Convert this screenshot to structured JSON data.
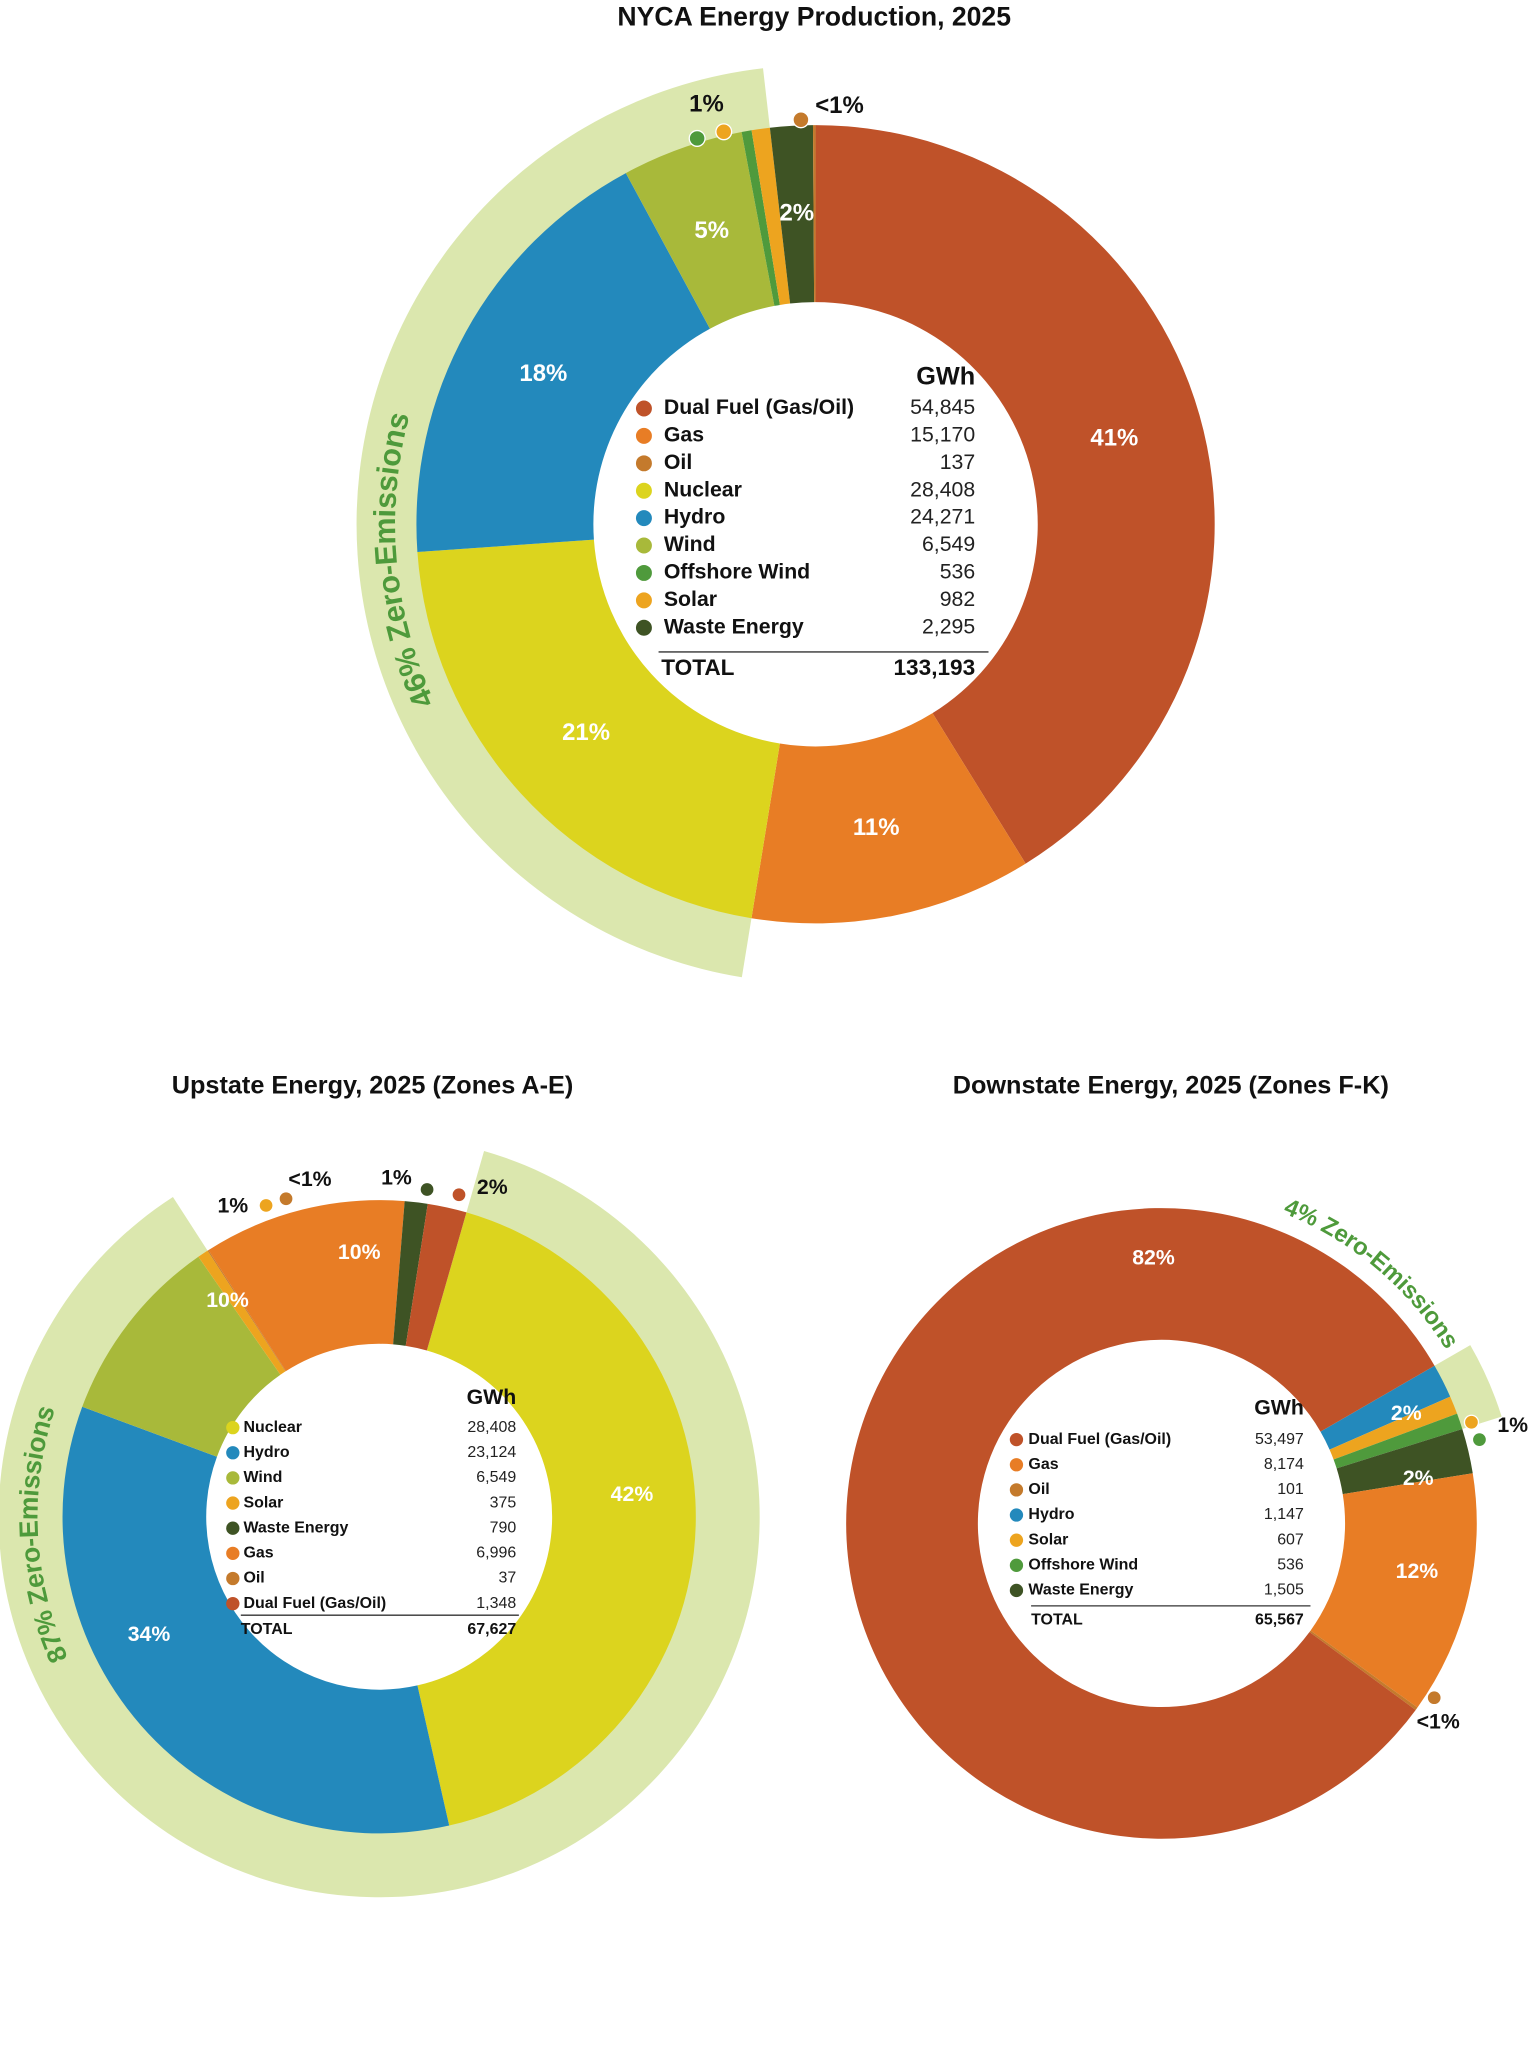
{
  "chart_data": [
    {
      "type": "pie",
      "title": "NYCA Energy Production, 2025",
      "categories": [
        "Dual Fuel (Gas/Oil)",
        "Gas",
        "Nuclear",
        "Hydro",
        "Wind",
        "Offshore Wind",
        "Solar",
        "Waste Energy",
        "Oil"
      ],
      "values": [
        54845,
        15170,
        28408,
        24271,
        6549,
        536,
        982,
        2295,
        137
      ],
      "value_labels": [
        "41%",
        "11%",
        "21%",
        "18%",
        "5%",
        null,
        "1%",
        "2%",
        "<1%"
      ],
      "colors": [
        "#bf5229",
        "#e87d25",
        "#dcd41e",
        "#2389bc",
        "#a8b93a",
        "#4f9a3c",
        "#eda41f",
        "#3e5324",
        "#c47a2c"
      ],
      "zero_emissions": [
        false,
        false,
        true,
        true,
        true,
        true,
        true,
        false,
        false
      ],
      "band_color": "#dbe7ae",
      "annotation": "46% Zero-Emissions",
      "annotation_color": "#4e9a3b",
      "legend": {
        "header": "GWh",
        "rows": [
          {
            "name": "Dual Fuel (Gas/Oil)",
            "color": "#bf5229",
            "gwh": {
              "value": 54845,
              "label": "54,845"
            }
          },
          {
            "name": "Gas",
            "color": "#e87d25",
            "gwh": {
              "value": 15170,
              "label": "15,170"
            }
          },
          {
            "name": "Oil",
            "color": "#c47a2c",
            "gwh": {
              "value": 137,
              "label": "137"
            }
          },
          {
            "name": "Nuclear",
            "color": "#dcd41e",
            "gwh": {
              "value": 28408,
              "label": "28,408"
            }
          },
          {
            "name": "Hydro",
            "color": "#2389bc",
            "gwh": {
              "value": 24271,
              "label": "24,271"
            }
          },
          {
            "name": "Wind",
            "color": "#a8b93a",
            "gwh": {
              "value": 6549,
              "label": "6,549"
            }
          },
          {
            "name": "Offshore Wind",
            "color": "#4f9a3c",
            "gwh": {
              "value": 536,
              "label": "536"
            }
          },
          {
            "name": "Solar",
            "color": "#eda41f",
            "gwh": {
              "value": 982,
              "label": "982"
            }
          },
          {
            "name": "Waste Energy",
            "color": "#3e5324",
            "gwh": {
              "value": 2295,
              "label": "2,295"
            }
          }
        ],
        "total_name": "TOTAL",
        "total": {
          "value": 133193,
          "label": "133,193"
        }
      }
    },
    {
      "type": "pie",
      "title": "Upstate Energy, 2025 (Zones A-E)",
      "categories": [
        "Nuclear",
        "Hydro",
        "Wind",
        "Solar",
        "Oil",
        "Gas",
        "Waste Energy",
        "Dual Fuel (Gas/Oil)"
      ],
      "values": [
        28408,
        23124,
        6549,
        375,
        37,
        6996,
        790,
        1348
      ],
      "value_labels": [
        "42%",
        "34%",
        "10%",
        "1%",
        "<1%",
        "10%",
        "1%",
        "2%"
      ],
      "colors": [
        "#dcd41e",
        "#2389bc",
        "#a8b93a",
        "#eda41f",
        "#c47a2c",
        "#e87d25",
        "#3e5324",
        "#bf5229"
      ],
      "zero_emissions": [
        true,
        true,
        true,
        true,
        false,
        false,
        false,
        false
      ],
      "band_color": "#dbe7ae",
      "annotation": "87% Zero-Emissions",
      "annotation_color": "#4e9a3b",
      "legend": {
        "header": "GWh",
        "rows": [
          {
            "name": "Nuclear",
            "color": "#dcd41e",
            "gwh": {
              "value": 28408,
              "label": "28,408"
            }
          },
          {
            "name": "Hydro",
            "color": "#2389bc",
            "gwh": {
              "value": 23124,
              "label": "23,124"
            }
          },
          {
            "name": "Wind",
            "color": "#a8b93a",
            "gwh": {
              "value": 6549,
              "label": "6,549"
            }
          },
          {
            "name": "Solar",
            "color": "#eda41f",
            "gwh": {
              "value": 375,
              "label": "375"
            }
          },
          {
            "name": "Waste Energy",
            "color": "#3e5324",
            "gwh": {
              "value": 790,
              "label": "790"
            }
          },
          {
            "name": "Gas",
            "color": "#e87d25",
            "gwh": {
              "value": 6996,
              "label": "6,996"
            }
          },
          {
            "name": "Oil",
            "color": "#c47a2c",
            "gwh": {
              "value": 37,
              "label": "37"
            }
          },
          {
            "name": "Dual Fuel (Gas/Oil)",
            "color": "#bf5229",
            "gwh": {
              "value": 1348,
              "label": "1,348"
            }
          }
        ],
        "total_name": "TOTAL",
        "total": {
          "value": 67627,
          "label": "67,627"
        }
      }
    },
    {
      "type": "pie",
      "title": "Downstate Energy, 2025 (Zones F-K)",
      "categories": [
        "Hydro",
        "Solar",
        "Offshore Wind",
        "Waste Energy",
        "Gas",
        "Oil",
        "Dual Fuel (Gas/Oil)"
      ],
      "values": [
        1147,
        607,
        536,
        1505,
        8174,
        101,
        53497
      ],
      "value_labels": [
        "2%",
        "1%",
        null,
        "2%",
        "12%",
        "<1%",
        "82%"
      ],
      "colors": [
        "#2389bc",
        "#eda41f",
        "#4f9a3c",
        "#3e5324",
        "#e87d25",
        "#c47a2c",
        "#bf5229"
      ],
      "zero_emissions": [
        true,
        true,
        true,
        false,
        false,
        false,
        false
      ],
      "band_color": "#dbe7ae",
      "annotation": "4% Zero-Emissions",
      "annotation_color": "#4e9a3b",
      "legend": {
        "header": "GWh",
        "rows": [
          {
            "name": "Dual Fuel (Gas/Oil)",
            "color": "#bf5229",
            "gwh": {
              "value": 53497,
              "label": "53,497"
            }
          },
          {
            "name": "Gas",
            "color": "#e87d25",
            "gwh": {
              "value": 8174,
              "label": "8,174"
            }
          },
          {
            "name": "Oil",
            "color": "#c47a2c",
            "gwh": {
              "value": 101,
              "label": "101"
            }
          },
          {
            "name": "Hydro",
            "color": "#2389bc",
            "gwh": {
              "value": 1147,
              "label": "1,147"
            }
          },
          {
            "name": "Solar",
            "color": "#eda41f",
            "gwh": {
              "value": 607,
              "label": "607"
            }
          },
          {
            "name": "Offshore Wind",
            "color": "#4f9a3c",
            "gwh": {
              "value": 536,
              "label": "536"
            }
          },
          {
            "name": "Waste Energy",
            "color": "#3e5324",
            "gwh": {
              "value": 1505,
              "label": "1,505"
            }
          }
        ],
        "total_name": "TOTAL",
        "total": {
          "value": 65567,
          "label": "65,567"
        }
      }
    }
  ]
}
